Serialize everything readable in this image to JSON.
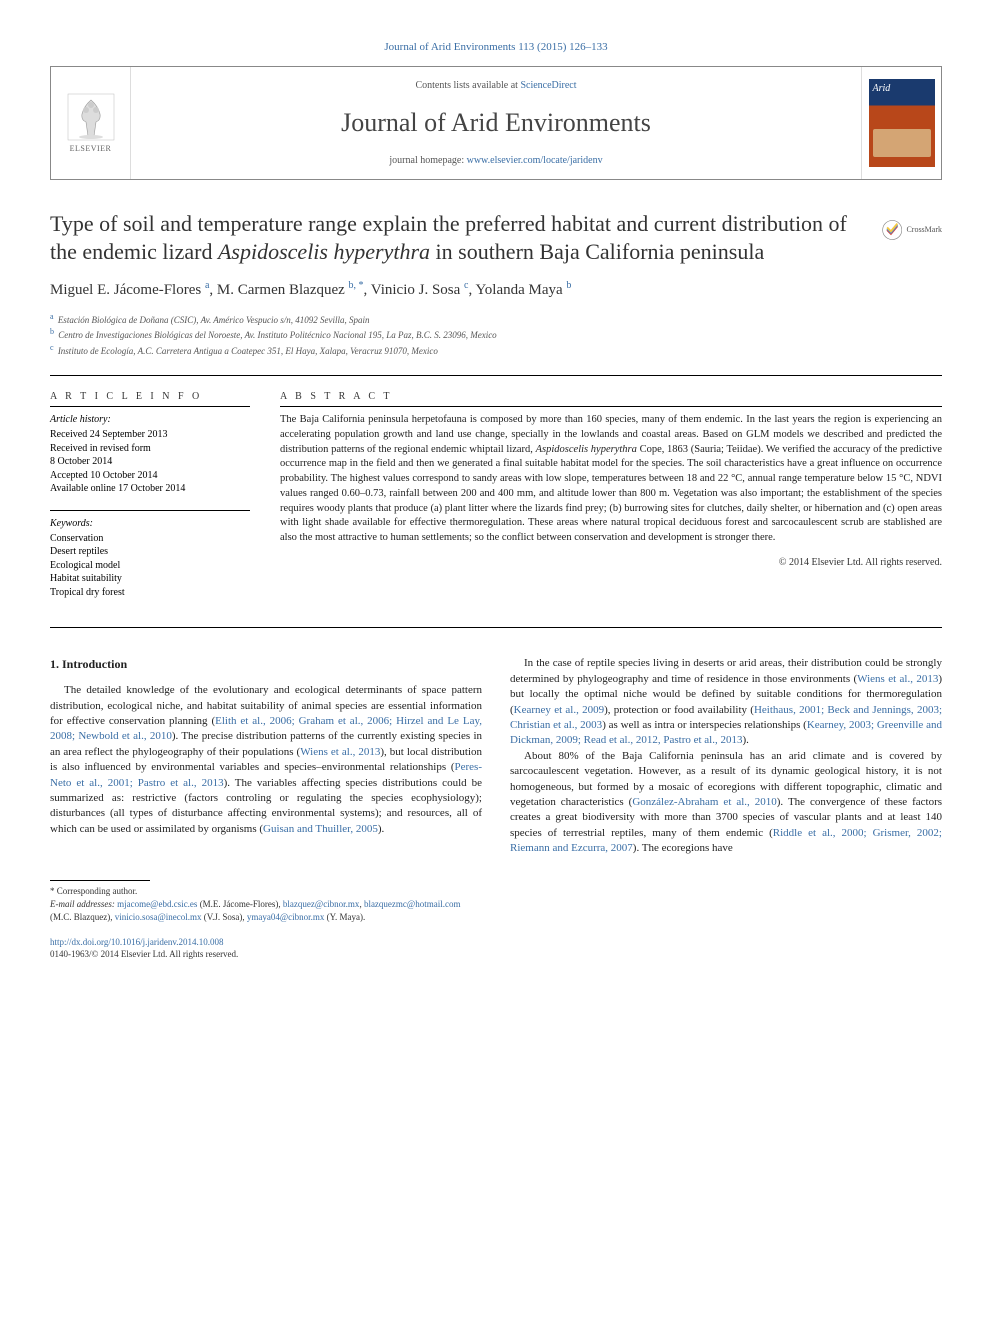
{
  "citation": "Journal of Arid Environments 113 (2015) 126–133",
  "header": {
    "contents_prefix": "Contents lists available at ",
    "contents_link": "ScienceDirect",
    "journal_name": "Journal of Arid Environments",
    "homepage_prefix": "journal homepage: ",
    "homepage_url": "www.elsevier.com/locate/jaridenv",
    "elsevier_label": "ELSEVIER",
    "cover_title": "Arid"
  },
  "crossmark_label": "CrossMark",
  "title_parts": {
    "p1": "Type of soil and temperature range explain the preferred habitat and current distribution of the endemic lizard ",
    "p2_italic": "Aspidoscelis hyperythra",
    "p3": " in southern Baja California peninsula"
  },
  "authors_html": "Miguel E. Jácome-Flores <sup>a</sup>, M. Carmen Blazquez <sup>b, *</sup>, Vinicio J. Sosa <sup>c</sup>, Yolanda Maya <sup>b</sup>",
  "affiliations": [
    {
      "sup": "a",
      "text": "Estación Biológica de Doñana (CSIC), Av. Américo Vespucio s/n, 41092 Sevilla, Spain"
    },
    {
      "sup": "b",
      "text": "Centro de Investigaciones Biológicas del Noroeste, Av. Instituto Politécnico Nacional 195, La Paz, B.C. S. 23096, Mexico"
    },
    {
      "sup": "c",
      "text": "Instituto de Ecología, A.C. Carretera Antigua a Coatepec 351, El Haya, Xalapa, Veracruz 91070, Mexico"
    }
  ],
  "article_info": {
    "heading": "A R T I C L E   I N F O",
    "history_label": "Article history:",
    "history": [
      "Received 24 September 2013",
      "Received in revised form",
      "8 October 2014",
      "Accepted 10 October 2014",
      "Available online 17 October 2014"
    ],
    "keywords_label": "Keywords:",
    "keywords": [
      "Conservation",
      "Desert reptiles",
      "Ecological model",
      "Habitat suitability",
      "Tropical dry forest"
    ]
  },
  "abstract": {
    "heading": "A B S T R A C T",
    "text_pre": "The Baja California peninsula herpetofauna is composed by more than 160 species, many of them endemic. In the last years the region is experiencing an accelerating population growth and land use change, specially in the lowlands and coastal areas. Based on GLM models we described and predicted the distribution patterns of the regional endemic whiptail lizard, ",
    "text_italic": "Aspidoscelis hyperythra",
    "text_post": " Cope, 1863 (Sauria; Teiidae). We verified the accuracy of the predictive occurrence map in the field and then we generated a final suitable habitat model for the species. The soil characteristics have a great influence on occurrence probability. The highest values correspond to sandy areas with low slope, temperatures between 18 and 22 °C, annual range temperature below 15 °C, NDVI values ranged 0.60–0.73, rainfall between 200 and 400 mm, and altitude lower than 800 m. Vegetation was also important; the establishment of the species requires woody plants that produce (a) plant litter where the lizards find prey; (b) burrowing sites for clutches, daily shelter, or hibernation and (c) open areas with light shade available for effective thermoregulation. These areas where natural tropical deciduous forest and sarcocaulescent scrub are stablished are also the most attractive to human settlements; so the conflict between conservation and development is stronger there.",
    "copyright": "© 2014 Elsevier Ltd. All rights reserved."
  },
  "section1_heading": "1. Introduction",
  "body": {
    "p1a": "The detailed knowledge of the evolutionary and ecological determinants of space pattern distribution, ecological niche, and habitat suitability of animal species are essential information for effective conservation planning (",
    "p1_ref1": "Elith et al., 2006; Graham et al., 2006; Hirzel and Le Lay, 2008; Newbold et al., 2010",
    "p1b": "). The precise distribution patterns of the currently existing species in an area reflect the phylogeography of their populations (",
    "p1_ref2": "Wiens et al., 2013",
    "p1c": "), but local distribution is also influenced by environmental variables and species–environmental relationships (",
    "p1_ref3": "Peres-Neto et al., 2001; Pastro et al., 2013",
    "p1d": "). The variables affecting species distributions could be summarized as: restrictive (factors controling or regulating the species ecophysiology); disturbances (all types of disturbance affecting environmental systems); and resources, all of which can be used or assimilated by organisms (",
    "p1_ref4": "Guisan and Thuiller, 2005",
    "p1e": ").",
    "p2a": "In the case of reptile species living in deserts or arid areas, their distribution could be strongly determined by phylogeography and time of residence in those environments (",
    "p2_ref1": "Wiens et al., 2013",
    "p2b": ") but locally the optimal niche would be defined by suitable conditions for thermoregulation (",
    "p2_ref2": "Kearney et al., 2009",
    "p2c": "), protection or food availability (",
    "p2_ref3": "Heithaus, 2001; Beck and Jennings, 2003; Christian et al., 2003",
    "p2d": ") as well as intra or interspecies relationships (",
    "p2_ref4": "Kearney, 2003; Greenville and Dickman, 2009; Read et al., 2012, Pastro et al., 2013",
    "p2e": ").",
    "p3a": "About 80% of the Baja California peninsula has an arid climate and is covered by sarcocaulescent vegetation. However, as a result of its dynamic geological history, it is not homogeneous, but formed by a mosaic of ecoregions with different topographic, climatic and vegetation characteristics (",
    "p3_ref1": "González-Abraham et al., 2010",
    "p3b": "). The convergence of these factors creates a great biodiversity with more than 3700 species of vascular plants and at least 140 species of terrestrial reptiles, many of them endemic (",
    "p3_ref2": "Riddle et al., 2000; Grismer, 2002; Riemann and Ezcurra, 2007",
    "p3c": "). The ecoregions have"
  },
  "footnotes": {
    "corresponding": "* Corresponding author.",
    "email_label": "E-mail addresses:",
    "emails": [
      {
        "addr": "mjacome@ebd.csic.es",
        "who": " (M.E. Jácome-Flores), "
      },
      {
        "addr": "blazquez@cibnor.mx",
        "who": ", "
      },
      {
        "addr": "blazquezmc@hotmail.com",
        "who": " (M.C. Blazquez), "
      },
      {
        "addr": "vinicio.sosa@inecol.mx",
        "who": " (V.J. Sosa), "
      },
      {
        "addr": "ymaya04@cibnor.mx",
        "who": " (Y. Maya)."
      }
    ]
  },
  "doi": {
    "url": "http://dx.doi.org/10.1016/j.jaridenv.2014.10.008",
    "issn_copyright": "0140-1963/© 2014 Elsevier Ltd. All rights reserved."
  },
  "colors": {
    "link": "#3a6ea5",
    "text": "#222222",
    "border": "#888888"
  }
}
